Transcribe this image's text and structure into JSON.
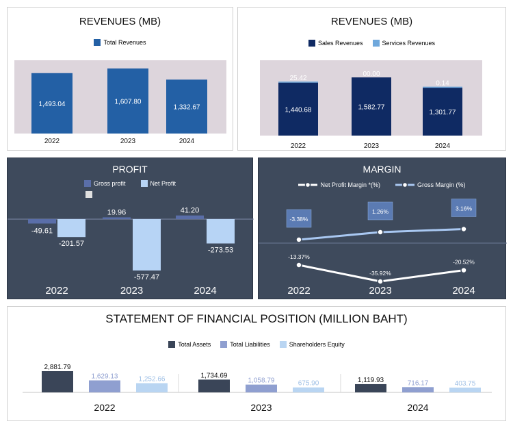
{
  "colors": {
    "total_rev": "#2360a5",
    "sales_rev": "#0f2a63",
    "services_rev": "#6fa8dc",
    "plot_bg": "#ddd5dc",
    "dark_panel": "#3e4a5c",
    "gross_profit": "#5a6ea8",
    "net_profit": "#b7d4f5",
    "net_margin_line": "#ffffff",
    "gross_margin_line": "#a9c8f2",
    "assets": "#3a4558",
    "liabilities": "#8f9fd0",
    "equity": "#b9d5f2"
  },
  "charts": {
    "rev_total": {
      "title": "REVENUES (MB)",
      "legend": [
        "Total Revenues"
      ]
    },
    "rev_split": {
      "title": "REVENUES (MB)",
      "legend": [
        "Sales Revenues",
        "Services Revenues"
      ]
    },
    "profit": {
      "title": "PROFIT",
      "legend": [
        "Gross profit",
        "Net Profit"
      ]
    },
    "margin": {
      "title": "MARGIN",
      "legend": [
        "Net Profit Margin *(%)",
        "Gross Margin (%)"
      ]
    },
    "position": {
      "title": "STATEMENT OF FINANCIAL POSITION (MILLION BAHT)",
      "legend": [
        "Total Assets",
        "Total Liabilities",
        "Shareholders Equity"
      ]
    }
  },
  "chart_data": [
    {
      "type": "bar",
      "title": "REVENUES (MB)",
      "categories": [
        "2022",
        "2023",
        "2024"
      ],
      "series": [
        {
          "name": "Total Revenues",
          "values": [
            1493.04,
            1607.8,
            1332.67
          ]
        }
      ],
      "labels": [
        "1,493.04",
        "1,607.80",
        "1,332.67"
      ]
    },
    {
      "type": "bar",
      "title": "REVENUES (MB)",
      "stacked": true,
      "categories": [
        "2022",
        "2023",
        "2024"
      ],
      "series": [
        {
          "name": "Sales Revenues",
          "values": [
            1440.68,
            1582.77,
            1301.77
          ]
        },
        {
          "name": "Services Revenues",
          "values": [
            25.42,
            0.0,
            0.14
          ]
        }
      ],
      "sales_labels": [
        "1,440.68",
        "1,582.77",
        "1,301.77"
      ],
      "service_labels": [
        "25.42",
        "00.00",
        "0.14"
      ]
    },
    {
      "type": "bar",
      "title": "PROFIT",
      "categories": [
        "2022",
        "2023",
        "2024"
      ],
      "series": [
        {
          "name": "Gross profit",
          "values": [
            -49.61,
            19.96,
            41.2
          ]
        },
        {
          "name": "Net Profit",
          "values": [
            -201.57,
            -577.47,
            -273.53
          ]
        }
      ],
      "gross_labels": [
        "-49.61",
        "19.96",
        "41.20"
      ],
      "net_labels": [
        "-201.57",
        "-577.47",
        "-273.53"
      ]
    },
    {
      "type": "line",
      "title": "MARGIN",
      "categories": [
        "2022",
        "2023",
        "2024"
      ],
      "series": [
        {
          "name": "Net Profit Margin *(%)",
          "values": [
            -13.37,
            -35.92,
            -20.52
          ]
        },
        {
          "name": "Gross Margin (%)",
          "values": [
            -3.38,
            1.26,
            3.16
          ]
        }
      ],
      "net_labels": [
        "-13.37%",
        "-35.92%",
        "-20.52%"
      ],
      "gross_labels": [
        "-3.38%",
        "1.26%",
        "3.16%"
      ]
    },
    {
      "type": "bar",
      "title": "STATEMENT OF FINANCIAL POSITION (MILLION BAHT)",
      "categories": [
        "2022",
        "2023",
        "2024"
      ],
      "series": [
        {
          "name": "Total Assets",
          "values": [
            2881.79,
            1734.69,
            1119.93
          ]
        },
        {
          "name": "Total Liabilities",
          "values": [
            1629.13,
            1058.79,
            716.17
          ]
        },
        {
          "name": "Shareholders Equity",
          "values": [
            1252.66,
            675.9,
            403.75
          ]
        }
      ],
      "labels": [
        [
          "2,881.79",
          "1,734.69",
          "1,119.93"
        ],
        [
          "1,629.13",
          "1,058.79",
          "716.17"
        ],
        [
          "1,252.66",
          "675.90",
          "403.75"
        ]
      ]
    }
  ]
}
